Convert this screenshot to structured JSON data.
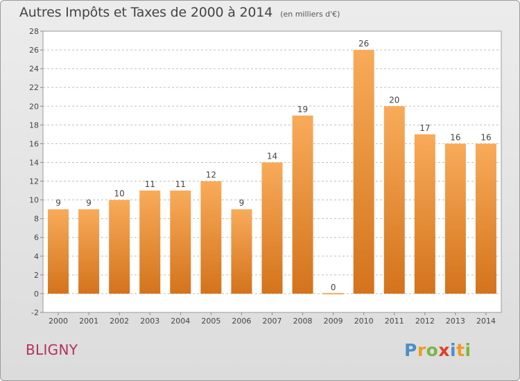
{
  "header": {
    "title": "Autres Impôts et Taxes de 2000 à 2014",
    "subtitle": "(en milliers d'€)"
  },
  "footer": {
    "commune": "BLIGNY",
    "logo_text": "Proxiti"
  },
  "colors": {
    "bar_light": "#f8ab5a",
    "bar_dark": "#d4731c",
    "grid": "#bfbfbf",
    "commune_text": "#b5305e"
  },
  "chart_data": {
    "type": "bar",
    "categories": [
      "2000",
      "2001",
      "2002",
      "2003",
      "2004",
      "2005",
      "2006",
      "2007",
      "2008",
      "2009",
      "2010",
      "2011",
      "2012",
      "2013",
      "2014"
    ],
    "values": [
      9,
      9,
      10,
      11,
      11,
      12,
      9,
      14,
      19,
      0,
      26,
      20,
      17,
      16,
      16
    ],
    "data_labels": [
      "9",
      "9",
      "10",
      "11",
      "11",
      "12",
      "9",
      "14",
      "19",
      "0",
      "26",
      "20",
      "17",
      "16",
      "16"
    ],
    "title": "Autres Impôts et Taxes de 2000 à 2014",
    "subtitle": "(en milliers d'€)",
    "xlabel": "",
    "ylabel": "",
    "ylim": [
      -2,
      28
    ],
    "yticks": [
      -2,
      0,
      2,
      4,
      6,
      8,
      10,
      12,
      14,
      16,
      18,
      20,
      22,
      24,
      26,
      28
    ],
    "grid": true,
    "legend": "none"
  }
}
